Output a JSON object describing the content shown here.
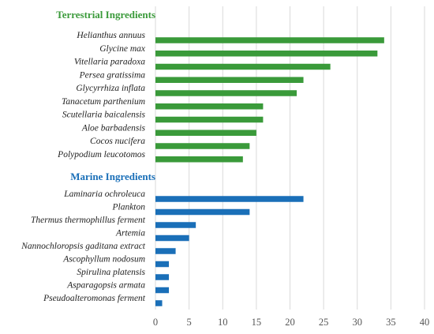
{
  "chart_data": {
    "type": "bar",
    "orientation": "horizontal",
    "groups": [
      {
        "title": "Terrestrial Ingredients",
        "color": "#3a9a3a",
        "categories": [
          "Helianthus annuus",
          "Glycine max",
          "Vitellaria paradoxa",
          "Persea gratissima",
          "Glycyrrhiza inflata",
          "Tanacetum parthenium",
          "Scutellaria baicalensis",
          "Aloe barbadensis",
          "Cocos nucifera",
          "Polypodium leucotomos"
        ],
        "values": [
          34,
          33,
          26,
          22,
          21,
          16,
          16,
          15,
          14,
          13
        ]
      },
      {
        "title": "Marine Ingredients",
        "color": "#1a6fb8",
        "categories": [
          "Laminaria ochroleuca",
          "Plankton",
          "Thermus thermophillus ferment",
          "Artemia",
          "Nannochloropsis gaditana extract",
          "Ascophyllum nodosum",
          "Spirulina platensis",
          "Asparagopsis armata",
          "Pseudoalteromonas ferment"
        ],
        "values": [
          22,
          14,
          6,
          5,
          3,
          2,
          2,
          2,
          1
        ]
      }
    ],
    "xlim": [
      0,
      40
    ],
    "xticks": [
      0,
      5,
      10,
      15,
      20,
      25,
      30,
      35,
      40
    ],
    "grid": true,
    "gridColor": "#d9d9d9",
    "legend": "none"
  }
}
